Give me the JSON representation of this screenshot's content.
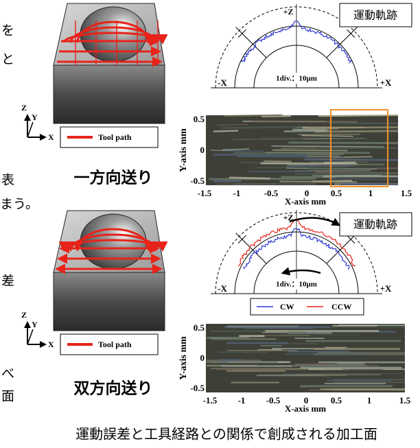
{
  "left_text_fragments": [
    "を",
    "と",
    "表",
    "まう。",
    "差",
    "べ",
    "面"
  ],
  "panels": [
    {
      "feed_label": "一方向送り",
      "tool_legend": "Tool path",
      "axis_labels": {
        "z": "Z",
        "y": "Y",
        "x": "X"
      },
      "polar": {
        "top": "+Z",
        "left": "-X",
        "right": "+X",
        "scale": "1div.：10μm",
        "badge": "運動軌跡"
      },
      "surface": {
        "y_label": "Y-axis mm",
        "x_label": "X-axis mm",
        "y_ticks": [
          "0.5",
          "0",
          "-0.5"
        ],
        "x_ticks": [
          "-1.5",
          "-1",
          "-0.5",
          "0",
          "0.5",
          "1",
          "1.5"
        ]
      }
    },
    {
      "feed_label": "双方向送り",
      "tool_legend": "Tool path",
      "axis_labels": {
        "z": "Z",
        "y": "Y",
        "x": "X"
      },
      "polar": {
        "top": "+Z",
        "left": "-X",
        "right": "+X",
        "scale": "1div.：10μm",
        "badge": "運動軌跡",
        "legend": [
          "CW",
          "CCW"
        ]
      },
      "surface": {
        "y_label": "Y-axis mm",
        "x_label": "X-axis mm",
        "y_ticks": [
          "0.5",
          "0",
          "-0.5"
        ],
        "x_ticks": [
          "-1.5",
          "-1",
          "-0.5",
          "0",
          "0.5",
          "1",
          "1.5"
        ]
      }
    }
  ],
  "caption": "運動誤差と工具経路との関係で創成される加工面"
}
